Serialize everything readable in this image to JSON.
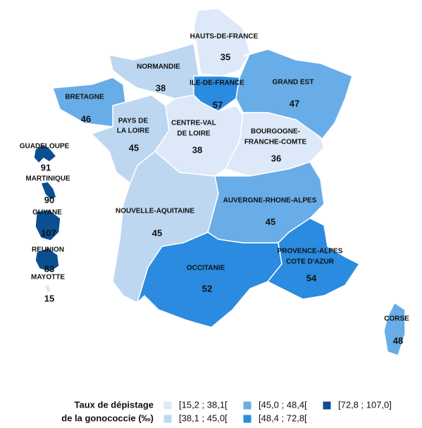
{
  "regions": [
    {
      "name": [
        "HAUTS-DE-FRANCE"
      ],
      "value": 35,
      "color": "#dde9f8"
    },
    {
      "name": [
        "NORMANDIE"
      ],
      "value": 38,
      "color": "#bdd7f1"
    },
    {
      "name": [
        "ILE-DE-FRANCE"
      ],
      "value": 57,
      "color": "#2a8be0"
    },
    {
      "name": [
        "GRAND EST"
      ],
      "value": 47,
      "color": "#68ade8"
    },
    {
      "name": [
        "BRETAGNE"
      ],
      "value": 46,
      "color": "#68ade8"
    },
    {
      "name": [
        "PAYS DE",
        "LA LOIRE"
      ],
      "value": 45,
      "color": "#bdd7f1"
    },
    {
      "name": [
        "CENTRE-VAL",
        "DE LOIRE"
      ],
      "value": 38,
      "color": "#dde9f8"
    },
    {
      "name": [
        "BOURGOGNE-",
        "FRANCHE-COMTE"
      ],
      "value": 36,
      "color": "#dde9f8"
    },
    {
      "name": [
        "NOUVELLE-AQUITAINE"
      ],
      "value": 45,
      "color": "#bdd7f1"
    },
    {
      "name": [
        "AUVERGNE-RHONE-ALPES"
      ],
      "value": 45,
      "color": "#68ade8"
    },
    {
      "name": [
        "OCCITANIE"
      ],
      "value": 52,
      "color": "#2a8be0"
    },
    {
      "name": [
        "PROVENCE-ALPES",
        "COTE D'AZUR"
      ],
      "value": 54,
      "color": "#2a8be0"
    },
    {
      "name": [
        "CORSE"
      ],
      "value": 48,
      "color": "#68ade8"
    },
    {
      "name": [
        "GUADELOUPE"
      ],
      "value": 91,
      "color": "#0b4f90"
    },
    {
      "name": [
        "MARTINIQUE"
      ],
      "value": 90,
      "color": "#0b4f90"
    },
    {
      "name": [
        "GUYANE"
      ],
      "value": 107,
      "color": "#0b4f90"
    },
    {
      "name": [
        "REUNION"
      ],
      "value": 83,
      "color": "#0b4f90"
    },
    {
      "name": [
        "MAYOTTE"
      ],
      "value": 15,
      "color": "#dde9f8"
    }
  ],
  "legend": {
    "title": [
      "Taux de dépistage",
      "de la gonococcie (‰)"
    ],
    "bins": [
      {
        "label": "[15,2 ; 38,1[",
        "color": "#dde9f8"
      },
      {
        "label": "[38,1 ; 45,0[",
        "color": "#bdd7f1"
      },
      {
        "label": "[45,0 ; 48,4[",
        "color": "#68ade8"
      },
      {
        "label": "[48,4 ; 72,8[",
        "color": "#2a8be0"
      },
      {
        "label": "[72,8 ; 107,0]",
        "color": "#0b4f90"
      }
    ]
  }
}
